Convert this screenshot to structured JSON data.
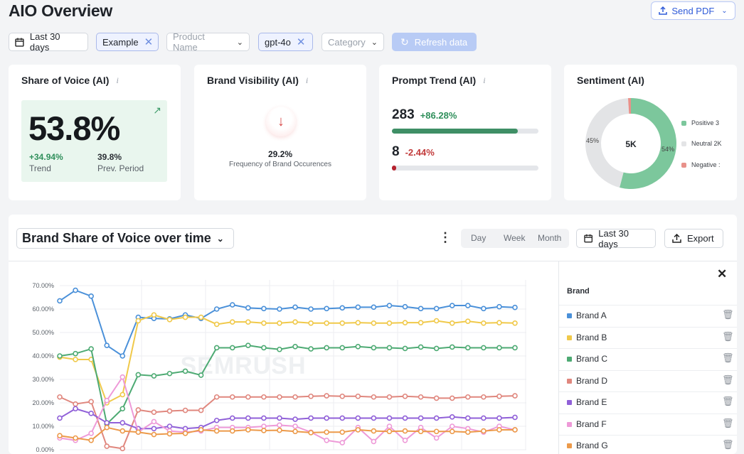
{
  "header": {
    "title": "AIO Overview",
    "send_pdf": "Send PDF"
  },
  "filters": {
    "date_range": "Last 30 days",
    "example_chip": "Example",
    "product_placeholder": "Product Name",
    "model_chip": "gpt-4o",
    "category_placeholder": "Category",
    "refresh": "Refresh data"
  },
  "cards": {
    "share_of_voice": {
      "title": "Share of Voice (AI)",
      "value": "53.8%",
      "trend_value": "+34.94%",
      "trend_label": "Trend",
      "prev_value": "39.8%",
      "prev_label": "Prev. Period"
    },
    "brand_visibility": {
      "title": "Brand Visibility (AI)",
      "value": "29.2%",
      "label": "Frequency of Brand Occurences"
    },
    "prompt_trend": {
      "title": "Prompt Trend (AI)",
      "up_count": "283",
      "up_change": "+86.28%",
      "up_fraction": 0.86,
      "down_count": "8",
      "down_change": "-2.44%",
      "down_fraction": 0.02,
      "up_color": "#3f8f66",
      "down_color": "#b5232f"
    },
    "sentiment": {
      "title": "Sentiment (AI)",
      "center": "5K",
      "label_left": "45%",
      "label_right": "54%",
      "segments": [
        {
          "name": "Positive 3",
          "value": 54,
          "color": "#7cc79c"
        },
        {
          "name": "Neutral 2K",
          "value": 45,
          "color": "#e3e4e6"
        },
        {
          "name": "Negative :",
          "value": 1,
          "color": "#e8918a"
        }
      ]
    }
  },
  "panel": {
    "title": "Brand Share of Voice over time",
    "seg_day": "Day",
    "seg_week": "Week",
    "seg_month": "Month",
    "date_range": "Last 30 days",
    "export": "Export",
    "brand_header": "Brand",
    "watermark": "SEMRUSH"
  },
  "chart_data": {
    "type": "line",
    "ylim": [
      0,
      70
    ],
    "yticks": [
      "70.00%",
      "60.00%",
      "50.00%",
      "40.00%",
      "30.00%",
      "20.00%",
      "10.00%",
      "0.00%"
    ],
    "series": [
      {
        "name": "Brand A",
        "color": "#4a90d9",
        "values": [
          63.5,
          68,
          65.5,
          44.5,
          40,
          56.5,
          56,
          55.8,
          57.5,
          56,
          60,
          61.8,
          60.5,
          60.2,
          60,
          60.8,
          60,
          60.2,
          60.5,
          60.8,
          60.8,
          61.5,
          61,
          60.2,
          60.2,
          61.5,
          61.5,
          60.2,
          61,
          60.7
        ]
      },
      {
        "name": "Brand B",
        "color": "#f0c94a",
        "values": [
          39.5,
          38.5,
          38.5,
          20,
          23.5,
          55,
          57.5,
          55.5,
          56.5,
          56.5,
          53.5,
          54.5,
          54.5,
          54,
          54,
          54.5,
          54,
          54,
          54,
          54.2,
          54,
          54,
          54.2,
          54.2,
          55,
          54,
          54.8,
          54,
          54.2,
          54
        ]
      },
      {
        "name": "Brand C",
        "color": "#4daa73",
        "values": [
          40,
          41,
          43,
          11,
          17.5,
          32,
          31.5,
          32.5,
          33.5,
          31.8,
          43.5,
          43.5,
          44.5,
          43.5,
          42.8,
          44,
          43,
          43.5,
          43.5,
          44,
          43.5,
          43.5,
          43.2,
          43.8,
          43.2,
          43.8,
          43.5,
          43.5,
          43.5,
          43.5
        ]
      },
      {
        "name": "Brand D",
        "color": "#e0877e",
        "values": [
          22.5,
          19.5,
          20.5,
          1.5,
          0.5,
          17,
          16,
          16.5,
          16.8,
          16.8,
          22.5,
          22.5,
          22.5,
          22.5,
          22.5,
          22.5,
          22.8,
          23,
          22.8,
          22.8,
          22.5,
          22.5,
          22.8,
          22.5,
          22,
          22,
          22.5,
          22.5,
          22.8,
          23
        ]
      },
      {
        "name": "Brand E",
        "color": "#9060d8",
        "values": [
          13.5,
          17.5,
          15.5,
          11.5,
          11.5,
          9,
          9,
          10,
          9,
          9.5,
          12.5,
          13.5,
          13.5,
          13.5,
          13.5,
          13,
          13.5,
          13.5,
          13.5,
          13.5,
          13.5,
          13.5,
          13.5,
          13.5,
          13.5,
          14,
          13.5,
          13.5,
          13.5,
          13.8
        ]
      },
      {
        "name": "Brand F",
        "color": "#ee9ad8",
        "values": [
          5,
          4,
          7,
          21,
          31,
          7.5,
          12,
          8,
          7.5,
          8,
          9.5,
          9.5,
          9.5,
          10,
          10.5,
          10,
          7.5,
          4,
          3,
          9.5,
          3.5,
          10,
          4,
          9.5,
          5,
          10,
          9,
          7.5,
          10,
          8.5
        ]
      },
      {
        "name": "Brand G",
        "color": "#ec9a4a",
        "values": [
          6,
          5,
          4,
          9.5,
          8,
          7.5,
          6.5,
          6.8,
          7,
          8.5,
          8,
          8,
          8.5,
          8.2,
          8.3,
          7.8,
          7.3,
          7.5,
          7.5,
          8.5,
          8,
          7.8,
          8,
          7.8,
          7.8,
          7.8,
          7.5,
          8,
          8.5,
          8.5
        ]
      }
    ]
  }
}
